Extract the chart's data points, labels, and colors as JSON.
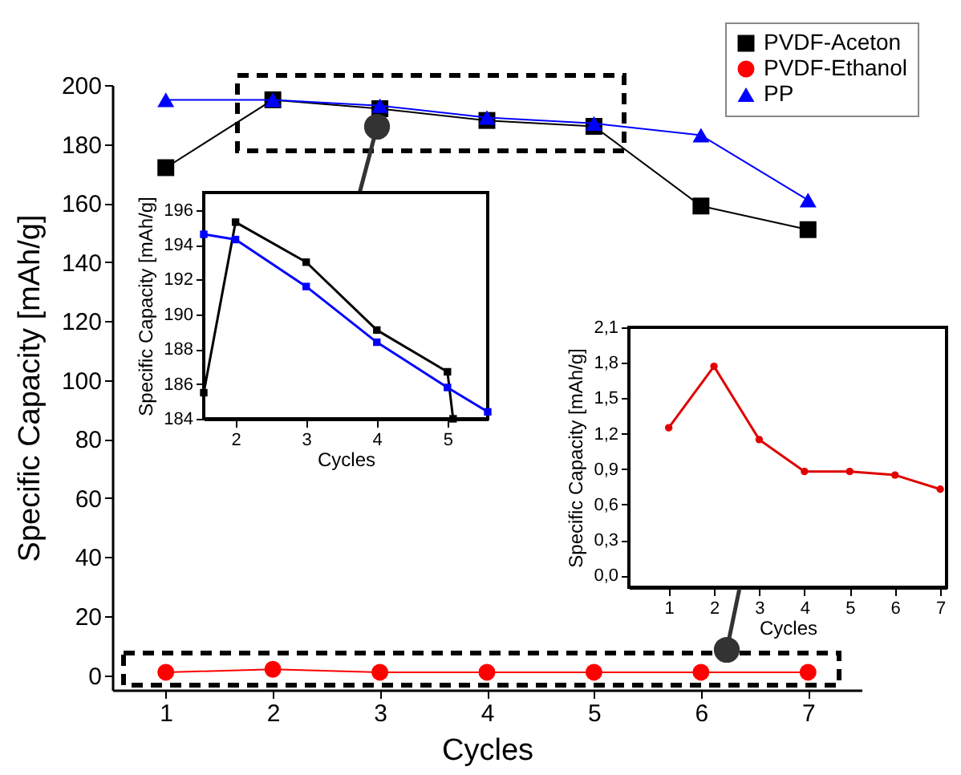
{
  "chart_data": [
    {
      "type": "line",
      "xlabel": "Cycles",
      "ylabel": "Specific Capacity [mAh/g]",
      "x": [
        1,
        2,
        3,
        4,
        5,
        6,
        7
      ],
      "xlim": [
        0.5,
        7.5
      ],
      "xticks": [
        1,
        2,
        3,
        4,
        5,
        6,
        7
      ],
      "ylim": [
        -5,
        200
      ],
      "yticks": [
        0,
        20,
        40,
        60,
        80,
        100,
        120,
        140,
        160,
        180,
        200
      ],
      "grid": false,
      "legend": "top right",
      "series": [
        {
          "name": "PVDF-Aceton",
          "color": "#000000",
          "marker": "square",
          "values": [
            172,
            195,
            192,
            188,
            186,
            159,
            151
          ]
        },
        {
          "name": "PVDF-Ethanol",
          "color": "#ff0000",
          "marker": "circle",
          "values": [
            1,
            2,
            1,
            1,
            1,
            1,
            1
          ]
        },
        {
          "name": "PP",
          "color": "#0000ff",
          "marker": "triangle",
          "values": [
            195,
            195,
            193,
            189,
            187,
            183,
            161
          ]
        }
      ]
    },
    {
      "type": "line",
      "xlabel": "Cycles",
      "ylabel": "Specific Capacity [mAh/g]",
      "xlim": [
        1.55,
        5.57
      ],
      "xticks": [
        2,
        3,
        4,
        5
      ],
      "ylim": [
        184,
        197
      ],
      "yticks": [
        184,
        186,
        188,
        190,
        192,
        194,
        196
      ],
      "grid": false,
      "legend": false,
      "marker": "square",
      "series": [
        {
          "color": "#000000",
          "x": [
            1.55,
            2,
            3,
            4,
            5,
            5.08
          ],
          "values": [
            185.5,
            195.3,
            193,
            189.1,
            186.7,
            184
          ]
        },
        {
          "color": "#0000ff",
          "x": [
            1.55,
            2,
            3,
            4,
            5,
            5.57
          ],
          "values": [
            194.6,
            194.3,
            191.6,
            188.4,
            185.8,
            184.4
          ]
        }
      ]
    },
    {
      "type": "line",
      "xlabel": "Cycles",
      "ylabel": "Specific Capacity [mAh/g]",
      "x": [
        1,
        2,
        3,
        4,
        5,
        6,
        7
      ],
      "xlim": [
        0.12,
        7.14
      ],
      "xticks": [
        1,
        2,
        3,
        4,
        5,
        6,
        7
      ],
      "ylim": [
        -0.1,
        2.1
      ],
      "yticks": [
        {
          "value": 0,
          "label": "0,0"
        },
        {
          "value": 0.3,
          "label": "0,3"
        },
        {
          "value": 0.6,
          "label": "0,6"
        },
        {
          "value": 0.9,
          "label": "0,9"
        },
        {
          "value": 1.2,
          "label": "1,2"
        },
        {
          "value": 1.5,
          "label": "1,5"
        },
        {
          "value": 1.8,
          "label": "1,8"
        },
        {
          "value": 2.1,
          "label": "2,1"
        }
      ],
      "grid": false,
      "legend": false,
      "marker": "circle",
      "series": [
        {
          "color": "#e00000",
          "values": [
            1.25,
            1.77,
            1.15,
            0.88,
            0.88,
            0.85,
            0.73
          ]
        }
      ]
    }
  ]
}
